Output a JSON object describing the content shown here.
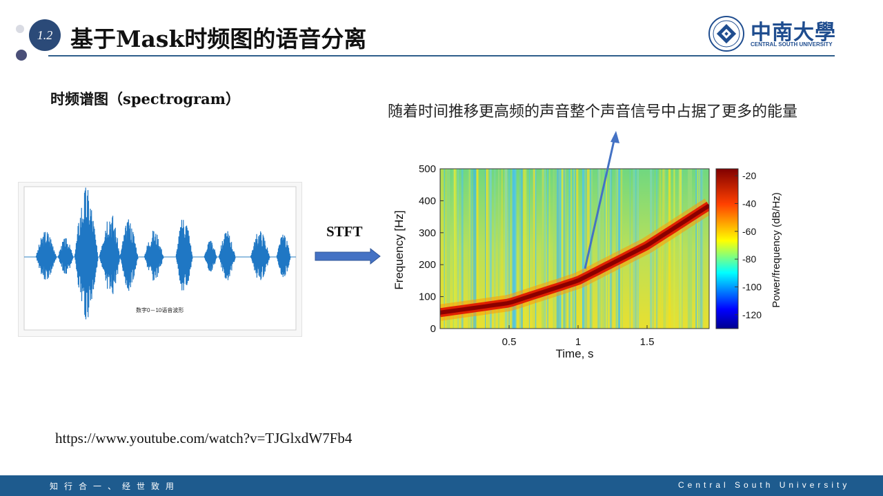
{
  "header": {
    "section_number": "1.2",
    "title": "基于Mask时频图的语音分离",
    "logo_cn": "中南大學",
    "logo_en": "CENTRAL SOUTH UNIVERSITY"
  },
  "body": {
    "subtitle": "时频谱图（spectrogram）",
    "annotation": "随着时间推移更高频的声音整个声音信号中占据了更多的能量",
    "stft_label": "STFT",
    "url": "https://www.youtube.com/watch?v=TJGlxdW7Fb4"
  },
  "waveform": {
    "caption": "数字0－10语音波形"
  },
  "footer": {
    "left": "知行合一、经世致用",
    "right": "Central South University"
  },
  "colors": {
    "accent": "#1e5b8e",
    "arrow": "#4472c4"
  },
  "chart_data": {
    "type": "heatmap",
    "xlabel": "Time, s",
    "ylabel": "Frequency [Hz]",
    "xlim": [
      0,
      1.95
    ],
    "ylim": [
      0,
      500
    ],
    "xticks": [
      "0.5",
      "1",
      "1.5"
    ],
    "xtick_values": [
      0.5,
      1,
      1.5
    ],
    "yticks": [
      "0",
      "100",
      "200",
      "300",
      "400",
      "500"
    ],
    "ytick_values": [
      0,
      100,
      200,
      300,
      400,
      500
    ],
    "colorbar": {
      "label": "Power/frequency (dB/Hz)",
      "range": [
        -130,
        -15
      ],
      "ticks": [
        "-20",
        "-40",
        "-60",
        "-80",
        "-100",
        "-120"
      ],
      "tick_values": [
        -20,
        -40,
        -60,
        -80,
        -100,
        -120
      ]
    },
    "chirp": {
      "series": "dominant frequency",
      "x": [
        0,
        0.5,
        1.0,
        1.5,
        1.95
      ],
      "y": [
        50,
        80,
        150,
        260,
        385
      ]
    }
  }
}
